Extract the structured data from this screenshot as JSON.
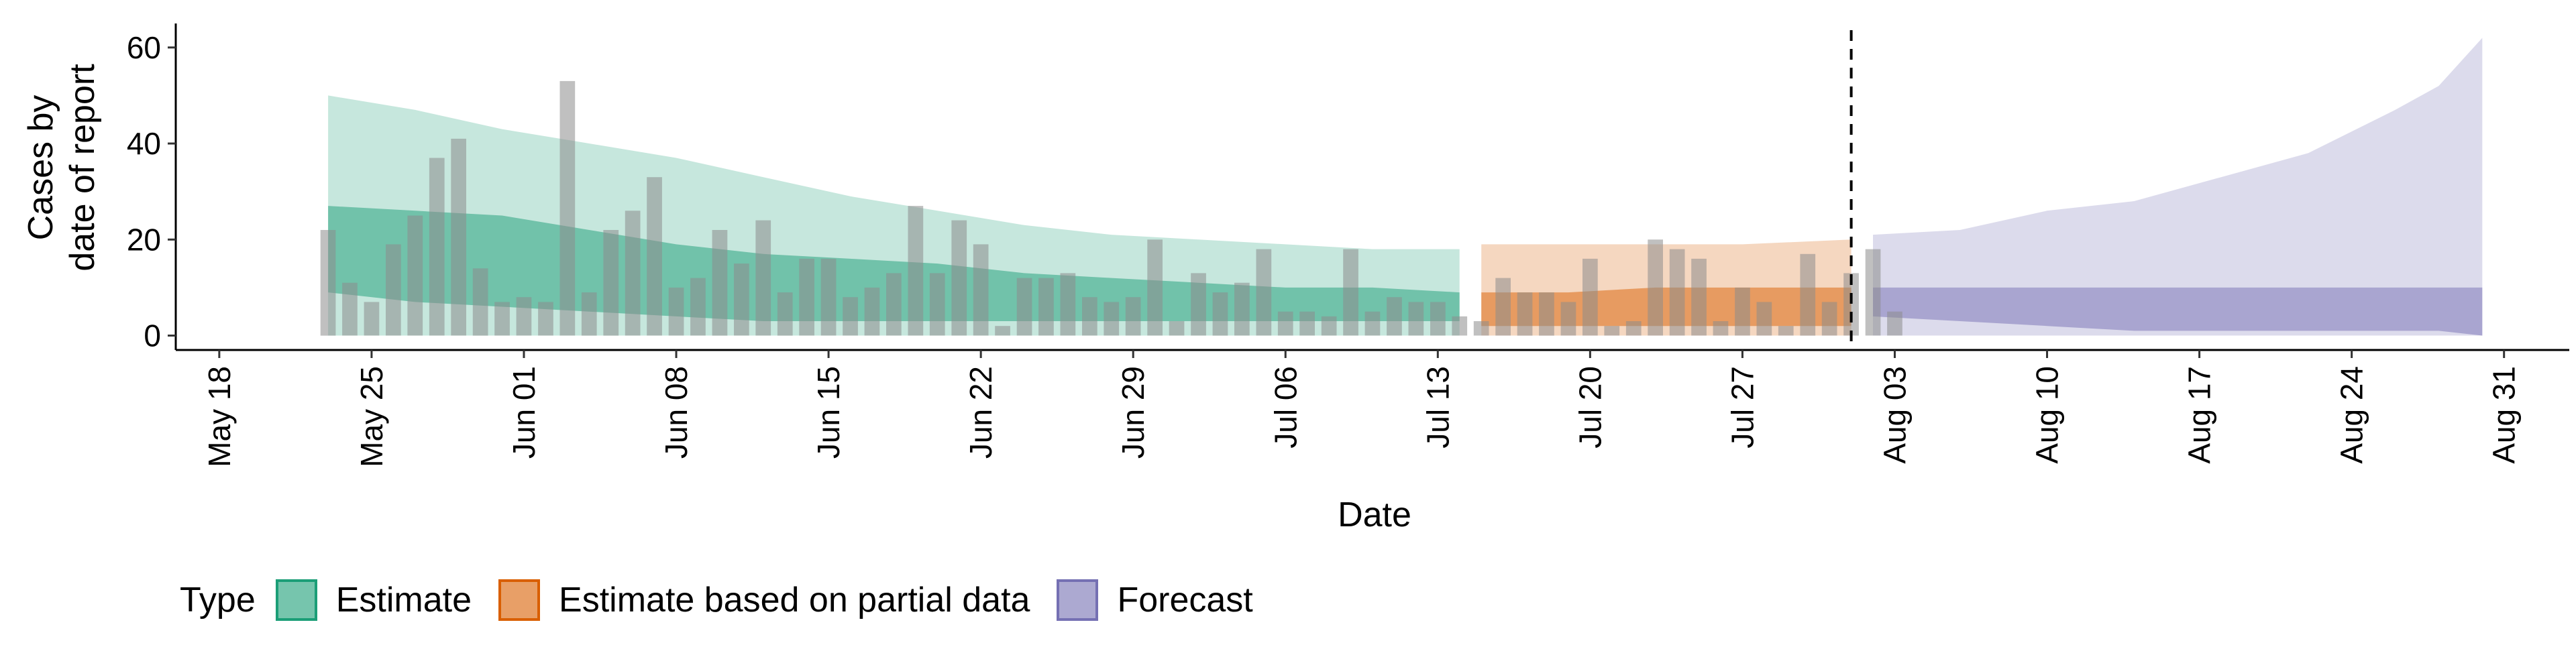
{
  "chart_data": {
    "type": "area",
    "title": "",
    "xlabel": "Date",
    "ylabel_lines": [
      "Cases by",
      "date of report"
    ],
    "x_range": [
      "2020-05-16",
      "2020-09-03"
    ],
    "ylim": [
      -3,
      65
    ],
    "yticks": [
      0,
      20,
      40,
      60
    ],
    "xticks": [
      {
        "date": "2020-05-18",
        "label": "May 18"
      },
      {
        "date": "2020-05-25",
        "label": "May 25"
      },
      {
        "date": "2020-06-01",
        "label": "Jun 01"
      },
      {
        "date": "2020-06-08",
        "label": "Jun 08"
      },
      {
        "date": "2020-06-15",
        "label": "Jun 15"
      },
      {
        "date": "2020-06-22",
        "label": "Jun 22"
      },
      {
        "date": "2020-06-29",
        "label": "Jun 29"
      },
      {
        "date": "2020-07-06",
        "label": "Jul 06"
      },
      {
        "date": "2020-07-13",
        "label": "Jul 13"
      },
      {
        "date": "2020-07-20",
        "label": "Jul 20"
      },
      {
        "date": "2020-07-27",
        "label": "Jul 27"
      },
      {
        "date": "2020-08-03",
        "label": "Aug 03"
      },
      {
        "date": "2020-08-10",
        "label": "Aug 10"
      },
      {
        "date": "2020-08-17",
        "label": "Aug 17"
      },
      {
        "date": "2020-08-24",
        "label": "Aug 24"
      },
      {
        "date": "2020-08-31",
        "label": "Aug 31"
      }
    ],
    "grid": false,
    "legend_position": "bottom-left",
    "vline_date": "2020-08-01",
    "reported_cases": {
      "start_date": "2020-05-23",
      "values": [
        22,
        11,
        7,
        19,
        25,
        37,
        41,
        14,
        7,
        8,
        7,
        53,
        9,
        22,
        26,
        33,
        10,
        12,
        22,
        15,
        24,
        9,
        16,
        16,
        8,
        10,
        13,
        27,
        13,
        24,
        19,
        2,
        12,
        12,
        13,
        8,
        7,
        8,
        20,
        3,
        13,
        9,
        11,
        18,
        5,
        5,
        4,
        18,
        5,
        8,
        7,
        7,
        4,
        3,
        12,
        9,
        9,
        7,
        16,
        2,
        3,
        20,
        18,
        16,
        3,
        10,
        7,
        2,
        17,
        7,
        13,
        18,
        5
      ]
    },
    "series": [
      {
        "name": "Estimate",
        "color": "#1b9e77",
        "dates": [
          "2020-05-23",
          "2020-05-27",
          "2020-05-31",
          "2020-06-04",
          "2020-06-08",
          "2020-06-12",
          "2020-06-16",
          "2020-06-20",
          "2020-06-24",
          "2020-06-28",
          "2020-07-02",
          "2020-07-06",
          "2020-07-10",
          "2020-07-14"
        ],
        "outer_low": [
          0,
          0,
          0,
          0,
          0,
          0,
          0,
          0,
          0,
          0,
          0,
          0,
          0,
          0
        ],
        "outer_high": [
          50,
          47,
          43,
          40,
          37,
          33,
          29,
          26,
          23,
          21,
          20,
          19,
          18,
          18
        ],
        "inner_low": [
          9,
          7,
          6,
          5,
          4,
          3,
          3,
          3,
          3,
          3,
          3,
          3,
          3,
          3
        ],
        "inner_high": [
          27,
          26,
          25,
          22,
          19,
          17,
          16,
          15,
          13,
          12,
          11,
          10,
          10,
          9
        ]
      },
      {
        "name": "Estimate based on partial data",
        "color": "#d95f02",
        "dates": [
          "2020-07-15",
          "2020-07-19",
          "2020-07-23",
          "2020-07-27",
          "2020-08-01"
        ],
        "outer_low": [
          0,
          0,
          0,
          0,
          0
        ],
        "outer_high": [
          19,
          19,
          19,
          19,
          20
        ],
        "inner_low": [
          2,
          2,
          2,
          2,
          2
        ],
        "inner_high": [
          9,
          9,
          10,
          10,
          10
        ]
      },
      {
        "name": "Forecast",
        "color": "#7570b3",
        "dates": [
          "2020-08-02",
          "2020-08-06",
          "2020-08-10",
          "2020-08-14",
          "2020-08-18",
          "2020-08-22",
          "2020-08-26",
          "2020-08-28",
          "2020-08-30"
        ],
        "outer_low": [
          0,
          0,
          0,
          0,
          0,
          0,
          0,
          0,
          0
        ],
        "outer_high": [
          21,
          22,
          26,
          28,
          33,
          38,
          47,
          52,
          62
        ],
        "inner_low": [
          4,
          3,
          2,
          1,
          1,
          1,
          1,
          1,
          0
        ],
        "inner_high": [
          10,
          10,
          10,
          10,
          10,
          10,
          10,
          10,
          10
        ]
      }
    ],
    "legend": {
      "title": "Type",
      "items": [
        "Estimate",
        "Estimate based on partial data",
        "Forecast"
      ]
    }
  }
}
